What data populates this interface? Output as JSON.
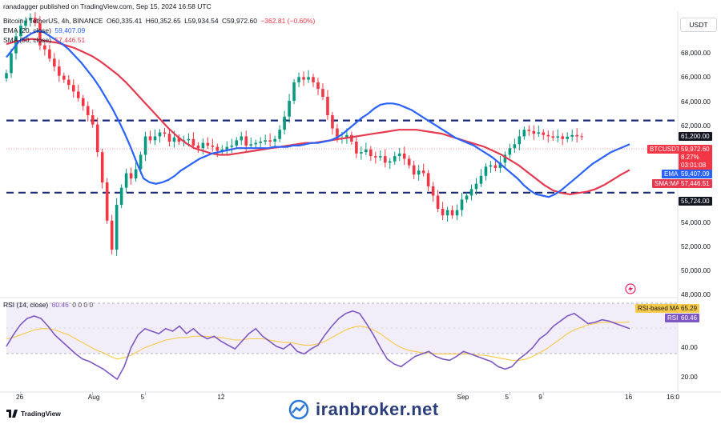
{
  "publisher": "ranadagger published on TradingView.com, Sep 15, 2024 16:58 UTC",
  "symbol_line": {
    "name": "Bitcoin / TetherUS, 4h, BINANCE",
    "o": "O60,335.41",
    "h": "H60,352.65",
    "l": "L59,934.54",
    "c": "C59,972.60",
    "chg": "−362.81 (−0.60%)"
  },
  "ema_line": {
    "label": "EMA (20, close)",
    "value": "59,407.09"
  },
  "sma_line": {
    "label": "SMA (50, close)",
    "value": "57,446.51"
  },
  "rsi_line": {
    "label": "RSI (14, close)",
    "value": "60.46",
    "extra": "0 0 0 0"
  },
  "currency_button": "USDT",
  "price_tags": {
    "level_high": "61,200.00",
    "btc_symbol": "BTCUSDT",
    "btc_price": "59,972.60",
    "btc_change": "8.27%",
    "btc_timer": "03:01:08",
    "ema_label": "EMA",
    "ema_value": "59,407.09",
    "sma_label": "SMA:MA",
    "sma_value": "57,446.51",
    "level_low": "55,724.00",
    "rsi_ma_label": "RSI-based MA",
    "rsi_ma_value": "65.29",
    "rsi_label": "RSI",
    "rsi_value": "60.46"
  },
  "price_axis_labels": [
    "68,000.00",
    "66,000.00",
    "64,000.00",
    "62,000.00",
    "54,000.00",
    "52,000.00",
    "50,000.00",
    "48,000.00"
  ],
  "rsi_axis_labels": [
    "40.00",
    "20.00"
  ],
  "x_axis_labels": [
    "26",
    "Aug",
    "5",
    "12",
    "Sep",
    "5",
    "9",
    "16",
    "16:0"
  ],
  "footer_brand": "TradingView",
  "watermark": "iranbroker.net",
  "colors": {
    "up": "#089981",
    "down": "#f23645",
    "ema": "#2962ff",
    "sma": "#e53950",
    "rsi": "#7e57c2",
    "rsi_ma": "#f7c948"
  },
  "chart_data": {
    "type": "line",
    "price_range": [
      48000,
      69500
    ],
    "rsi_range": [
      15,
      82
    ],
    "horizontal_levels": [
      61200,
      55724
    ],
    "rsi_bands": [
      70,
      30
    ],
    "x_ticks": [
      "26",
      "Aug",
      "5",
      "12",
      "Sep",
      "5",
      "9",
      "16"
    ],
    "x_tick_index": [
      3,
      18,
      29,
      45,
      95,
      105,
      112,
      130
    ],
    "bars": 131,
    "close": [
      64800,
      66300,
      67600,
      68400,
      68800,
      69000,
      68600,
      66900,
      66600,
      65900,
      65300,
      64600,
      64300,
      63900,
      63400,
      62900,
      62300,
      61600,
      60900,
      58800,
      56500,
      53600,
      51400,
      54800,
      56100,
      57200,
      56800,
      57500,
      58600,
      60000,
      59700,
      60000,
      60300,
      60200,
      59600,
      59900,
      59600,
      59700,
      59800,
      59300,
      59100,
      59500,
      59300,
      59200,
      58900,
      59000,
      59200,
      59300,
      59700,
      60000,
      59300,
      59400,
      59500,
      59600,
      59700,
      59600,
      59800,
      60500,
      61500,
      62700,
      64100,
      64500,
      64300,
      64500,
      64100,
      63600,
      63000,
      61600,
      60600,
      59800,
      59900,
      60100,
      59600,
      58700,
      58800,
      59000,
      58500,
      58400,
      58500,
      58000,
      58100,
      58500,
      58700,
      58300,
      57800,
      57100,
      57400,
      57200,
      56200,
      55500,
      54500,
      54000,
      54400,
      54000,
      54400,
      55200,
      55500,
      56000,
      56400,
      57000,
      57700,
      57800,
      57600,
      58000,
      58600,
      59100,
      59400,
      60000,
      60500,
      60400,
      60200,
      60300,
      60100,
      60000,
      59900,
      60000,
      59800,
      59970,
      60100,
      60000,
      59970
    ],
    "ema20": [
      66000,
      66600,
      67200,
      67500,
      67800,
      68000,
      67900,
      67600,
      67300,
      67000,
      66600,
      66100,
      65600,
      65000,
      64400,
      63700,
      62900,
      62100,
      61200,
      60200,
      59100,
      57900,
      56800,
      56500,
      56400,
      56500,
      56700,
      57000,
      57400,
      57700,
      58000,
      58300,
      58500,
      58700,
      58800,
      58900,
      59000,
      59100,
      59100,
      59100,
      59100,
      59100,
      59100,
      59200,
      59200,
      59200,
      59300,
      59300,
      59400,
      59500,
      59500,
      59600,
      59700,
      59900,
      60200,
      60600,
      61000,
      61400,
      61700,
      62100,
      62400,
      62500,
      62500,
      62400,
      62200,
      62000,
      61700,
      61400,
      61100,
      60800,
      60500,
      60200,
      59900,
      59700,
      59500,
      59300,
      59000,
      58700,
      58400,
      58000,
      57600,
      57200,
      56800,
      56300,
      55900,
      55600,
      55500,
      55400,
      55600,
      55900,
      56300,
      56700,
      57100,
      57500,
      57900,
      58200,
      58500,
      58800,
      59000,
      59200,
      59400
    ],
    "sma50": [
      67000,
      67200,
      67300,
      67400,
      67300,
      67200,
      67100,
      66900,
      66700,
      66400,
      66100,
      65700,
      65200,
      64700,
      64100,
      63400,
      62700,
      62000,
      61300,
      60600,
      60000,
      59500,
      59100,
      58900,
      58700,
      58600,
      58600,
      58700,
      58800,
      58900,
      59000,
      59100,
      59200,
      59300,
      59400,
      59500,
      59500,
      59600,
      59700,
      59800,
      59900,
      60000,
      60100,
      60200,
      60300,
      60400,
      60500,
      60500,
      60500,
      60400,
      60300,
      60200,
      60000,
      59800,
      59600,
      59400,
      59200,
      58900,
      58600,
      58200,
      57800,
      57300,
      56800,
      56300,
      55900,
      55700,
      55600,
      55700,
      55800,
      56000,
      56300,
      56700,
      57100,
      57446
    ],
    "rsi": [
      46,
      55,
      63,
      68,
      70,
      68,
      62,
      55,
      50,
      45,
      40,
      36,
      34,
      31,
      28,
      24,
      20,
      30,
      45,
      55,
      60,
      58,
      56,
      60,
      58,
      62,
      56,
      60,
      55,
      52,
      54,
      50,
      47,
      44,
      50,
      56,
      60,
      54,
      50,
      46,
      44,
      48,
      42,
      40,
      44,
      47,
      55,
      62,
      68,
      72,
      74,
      72,
      64,
      55,
      45,
      36,
      32,
      30,
      34,
      38,
      40,
      42,
      38,
      36,
      35,
      38,
      42,
      40,
      38,
      36,
      34,
      30,
      28,
      30,
      36,
      40,
      45,
      52,
      56,
      62,
      66,
      70,
      72,
      68,
      64,
      65,
      67,
      66,
      64,
      62,
      60
    ],
    "rsi_ma": [
      52,
      53,
      55,
      57,
      59,
      60,
      60,
      59,
      57,
      55,
      52,
      49,
      46,
      43,
      41,
      38,
      36,
      37,
      39,
      42,
      45,
      47,
      49,
      51,
      52,
      53,
      53,
      54,
      54,
      54,
      53,
      53,
      52,
      51,
      51,
      52,
      52,
      52,
      51,
      50,
      49,
      49,
      48,
      47,
      47,
      48,
      50,
      53,
      56,
      59,
      61,
      62,
      61,
      59,
      56,
      52,
      48,
      45,
      43,
      42,
      41,
      41,
      40,
      40,
      40,
      40,
      40,
      40,
      39,
      39,
      38,
      37,
      36,
      35,
      35,
      36,
      38,
      41,
      44,
      48,
      52,
      56,
      59,
      61,
      63,
      64,
      65,
      65,
      65,
      65,
      65.3
    ]
  }
}
